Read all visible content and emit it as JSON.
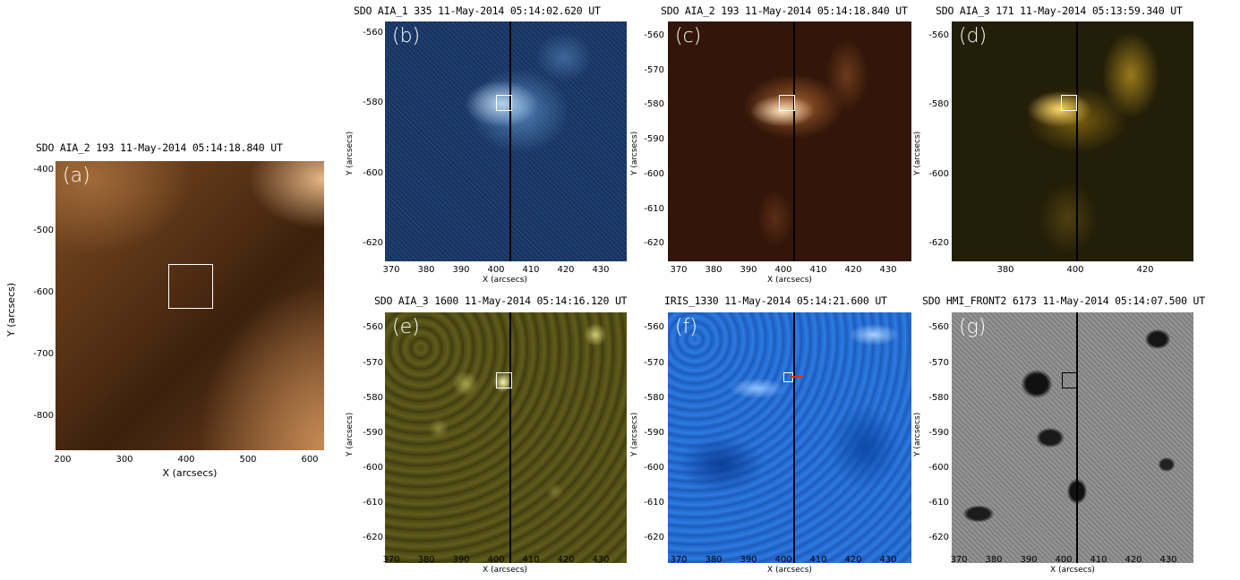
{
  "panels": {
    "a": {
      "title": "SDO AIA_2 193 11-May-2014 05:14:18.840 UT",
      "letter": "(a)",
      "xlabel": "X (arcsecs)",
      "ylabel": "Y (arcsecs)",
      "yticks": [
        "-400",
        "-500",
        "-600",
        "-700",
        "-800"
      ],
      "xticks": [
        "200",
        "300",
        "400",
        "500",
        "600"
      ],
      "color": "#6b3f18"
    },
    "b": {
      "title": "SDO AIA_1 335 11-May-2014 05:14:02.620 UT",
      "letter": "(b)",
      "xlabel": "X (arcsecs)",
      "ylabel": "Y (arcsecs)",
      "yticks": [
        "-560",
        "-580",
        "-600",
        "-620"
      ],
      "xticks": [
        "370",
        "380",
        "390",
        "400",
        "410",
        "420",
        "430"
      ],
      "color": "#1b3a63"
    },
    "c": {
      "title": "SDO AIA_2 193 11-May-2014 05:14:18.840 UT",
      "letter": "(c)",
      "xlabel": "X (arcsecs)",
      "ylabel": "Y (arcsecs)",
      "yticks": [
        "-560",
        "-570",
        "-580",
        "-590",
        "-600",
        "-610",
        "-620"
      ],
      "xticks": [
        "370",
        "380",
        "390",
        "400",
        "410",
        "420",
        "430"
      ],
      "color": "#3a1a0c"
    },
    "d": {
      "title": "SDO AIA_3 171 11-May-2014 05:13:59.340 UT",
      "letter": "(d)",
      "xlabel": "X (arcsecs)",
      "ylabel": "Y (arcsecs)",
      "yticks": [
        "-560",
        "-580",
        "-600",
        "-620"
      ],
      "xticks": [
        "380",
        "400",
        "420"
      ],
      "color": "#2a2408"
    },
    "e": {
      "title": "SDO AIA_3 1600 11-May-2014 05:14:16.120 UT",
      "letter": "(e)",
      "xlabel": "X (arcsecs)",
      "ylabel": "Y (arcsecs)",
      "yticks": [
        "-560",
        "-570",
        "-580",
        "-590",
        "-600",
        "-610",
        "-620"
      ],
      "xticks": [
        "370",
        "380",
        "390",
        "400",
        "410",
        "420",
        "430"
      ],
      "color": "#4b4a12"
    },
    "f": {
      "title": "IRIS_1330 11-May-2014 05:14:21.600 UT",
      "letter": "(f)",
      "xlabel": "X (arcsecs)",
      "ylabel": "Y (arcsecs)",
      "yticks": [
        "-560",
        "-570",
        "-580",
        "-590",
        "-600",
        "-610",
        "-620"
      ],
      "xticks": [
        "370",
        "380",
        "390",
        "400",
        "410",
        "420",
        "430"
      ],
      "color": "#1c63c9"
    },
    "g": {
      "title": "SDO HMI_FRONT2 6173 11-May-2014 05:14:07.500 UT",
      "letter": "(g)",
      "xlabel": "X (arcsecs)",
      "ylabel": "Y (arcsecs)",
      "yticks": [
        "-560",
        "-570",
        "-580",
        "-590",
        "-600",
        "-610",
        "-620"
      ],
      "xticks": [
        "370",
        "380",
        "390",
        "400",
        "410",
        "420",
        "430"
      ],
      "color": "#8a8a8a"
    }
  }
}
